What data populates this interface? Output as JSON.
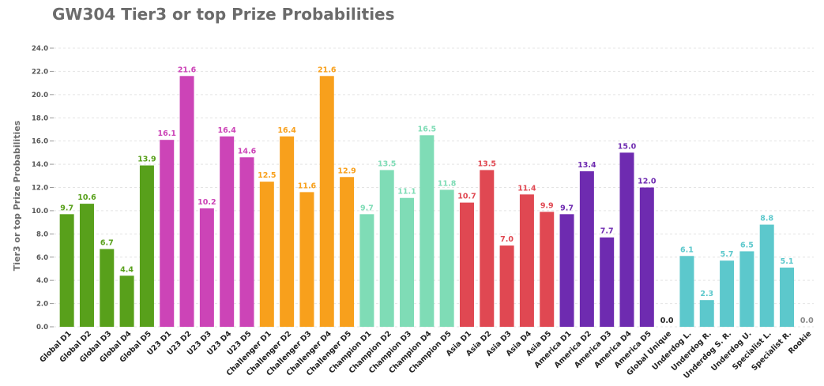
{
  "chart_data": {
    "type": "bar",
    "title": "GW304 Tier3 or top Prize Probabilities",
    "xlabel": "",
    "ylabel": "Tier3 or top Prize Probabilities",
    "ylim": [
      0,
      24
    ],
    "yticks": [
      "0.0",
      "2.0",
      "4.0",
      "6.0",
      "8.0",
      "10.0",
      "12.0",
      "14.0",
      "16.0",
      "18.0",
      "20.0",
      "22.0",
      "24.0"
    ],
    "grid": true,
    "legend": "none",
    "categories": [
      "Global D1",
      "Global D2",
      "Global D3",
      "Global D4",
      "Global D5",
      "U23 D1",
      "U23 D2",
      "U23 D3",
      "U23 D4",
      "U23 D5",
      "Challenger D1",
      "Challenger D2",
      "Challenger D3",
      "Challenger D4",
      "Challenger D5",
      "Champion D1",
      "Champion D2",
      "Champion D3",
      "Champion D4",
      "Champion D5",
      "Asia D1",
      "Asia D2",
      "Asia D3",
      "Asia D4",
      "Asia D5",
      "America D1",
      "America D2",
      "America D3",
      "America D4",
      "America D5",
      "Global Unique",
      "Underdog L.",
      "Underdog R.",
      "Underdog S. R.",
      "Underdog U.",
      "Specialist L.",
      "Specialist R.",
      "Rookie"
    ],
    "values": [
      9.7,
      10.6,
      6.7,
      4.4,
      13.9,
      16.1,
      21.6,
      10.2,
      16.4,
      14.6,
      12.5,
      16.4,
      11.6,
      21.6,
      12.9,
      9.7,
      13.5,
      11.1,
      16.5,
      11.8,
      10.7,
      13.5,
      7.0,
      11.4,
      9.9,
      9.7,
      13.4,
      7.7,
      15.0,
      12.0,
      0.0,
      6.1,
      2.3,
      5.7,
      6.5,
      8.8,
      5.1,
      0.0
    ],
    "value_labels": [
      "9.7",
      "10.6",
      "6.7",
      "4.4",
      "13.9",
      "16.1",
      "21.6",
      "10.2",
      "16.4",
      "14.6",
      "12.5",
      "16.4",
      "11.6",
      "21.6",
      "12.9",
      "9.7",
      "13.5",
      "11.1",
      "16.5",
      "11.8",
      "10.7",
      "13.5",
      "7.0",
      "11.4",
      "9.9",
      "9.7",
      "13.4",
      "7.7",
      "15.0",
      "12.0",
      "0.0",
      "6.1",
      "2.3",
      "5.7",
      "6.5",
      "8.8",
      "5.1",
      "0.0"
    ],
    "colors": [
      "#58a01b",
      "#58a01b",
      "#58a01b",
      "#58a01b",
      "#58a01b",
      "#cc44b7",
      "#cc44b7",
      "#cc44b7",
      "#cc44b7",
      "#cc44b7",
      "#f8a01c",
      "#f8a01c",
      "#f8a01c",
      "#f8a01c",
      "#f8a01c",
      "#7fdcb6",
      "#7fdcb6",
      "#7fdcb6",
      "#7fdcb6",
      "#7fdcb6",
      "#e04852",
      "#e04852",
      "#e04852",
      "#e04852",
      "#e04852",
      "#6e2bb0",
      "#6e2bb0",
      "#6e2bb0",
      "#6e2bb0",
      "#6e2bb0",
      "#222222",
      "#5cc8cc",
      "#5cc8cc",
      "#5cc8cc",
      "#5cc8cc",
      "#5cc8cc",
      "#5cc8cc",
      "#888888"
    ]
  }
}
